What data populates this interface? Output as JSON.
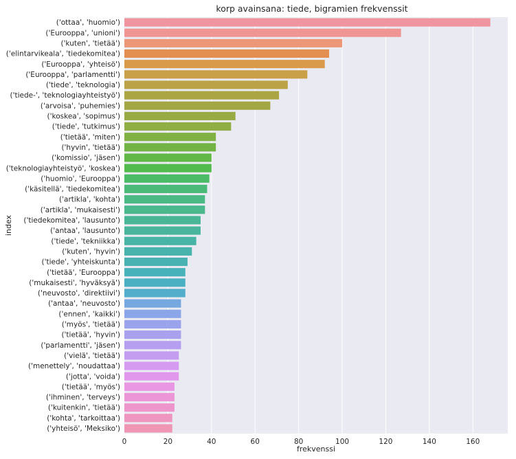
{
  "chart_data": {
    "type": "bar",
    "orientation": "horizontal",
    "title": "korp avainsana: tiede, bigramien frekvenssit",
    "xlabel": "frekvenssi",
    "ylabel": "index",
    "xlim": [
      0,
      176
    ],
    "xticks": [
      0,
      20,
      40,
      60,
      80,
      100,
      120,
      140,
      160
    ],
    "grid": true,
    "categories": [
      "('ottaa', 'huomio')",
      "('Eurooppa', 'unioni')",
      "('kuten', 'tietää')",
      "('elintarvikeala', 'tiedekomitea')",
      "('Eurooppa', 'yhteisö')",
      "('Eurooppa', 'parlamentti')",
      "('tiede', 'teknologia')",
      "('tiede-', 'teknologiayhteistyö')",
      "('arvoisa', 'puhemies')",
      "('koskea', 'sopimus')",
      "('tiede', 'tutkimus')",
      "('tietää', 'miten')",
      "('hyvin', 'tietää')",
      "('komissio', 'jäsen')",
      "('teknologiayhteistyö', 'koskea')",
      "('huomio', 'Eurooppa')",
      "('käsitellä', 'tiedekomitea')",
      "('artikla', 'kohta')",
      "('artikla', 'mukaisesti')",
      "('tiedekomitea', 'lausunto')",
      "('antaa', 'lausunto')",
      "('tiede', 'tekniikka')",
      "('kuten', 'hyvin')",
      "('tiede', 'yhteiskunta')",
      "('tietää', 'Eurooppa')",
      "('mukaisesti', 'hyväksyä')",
      "('neuvosto', 'direktiivi')",
      "('antaa', 'neuvosto')",
      "('ennen', 'kaikki')",
      "('myös', 'tietää')",
      "('tietää', 'hyvin')",
      "('parlamentti', 'jäsen')",
      "('vielä', 'tietää')",
      "('menettely', 'noudattaa')",
      "('jotta', 'voida')",
      "('tietää', 'myös')",
      "('ihminen', 'terveys')",
      "('kuitenkin', 'tietää')",
      "('kohta', 'tarkoittaa')",
      "('yhteisö', 'Meksiko')"
    ],
    "values": [
      168,
      127,
      100,
      94,
      92,
      84,
      75,
      71,
      67,
      51,
      49,
      42,
      42,
      40,
      40,
      39,
      38,
      37,
      37,
      35,
      35,
      33,
      31,
      29,
      28,
      28,
      28,
      26,
      26,
      26,
      26,
      26,
      25,
      25,
      25,
      23,
      23,
      23,
      22,
      22
    ],
    "colors": [
      "#f0959f",
      "#ef9594",
      "#ec9778",
      "#e38f52",
      "#d99a4a",
      "#c99f48",
      "#bba246",
      "#aca544",
      "#a2a744",
      "#97aa43",
      "#8fae43",
      "#82b143",
      "#72b444",
      "#61b847",
      "#52bb4d",
      "#4bbb68",
      "#4bba78",
      "#4ab983",
      "#4ab88c",
      "#49b695",
      "#49b59d",
      "#48b4a5",
      "#48b3ac",
      "#48b2b3",
      "#48b2ba",
      "#4bb0c2",
      "#52aeca",
      "#76a8e0",
      "#8aa5e8",
      "#9ba3ec",
      "#aaa1ee",
      "#b69ff0",
      "#c49df1",
      "#d49bf0",
      "#e197ec",
      "#e996e3",
      "#ec96d7",
      "#ee96cc",
      "#ef96c0",
      "#f096b5"
    ]
  }
}
